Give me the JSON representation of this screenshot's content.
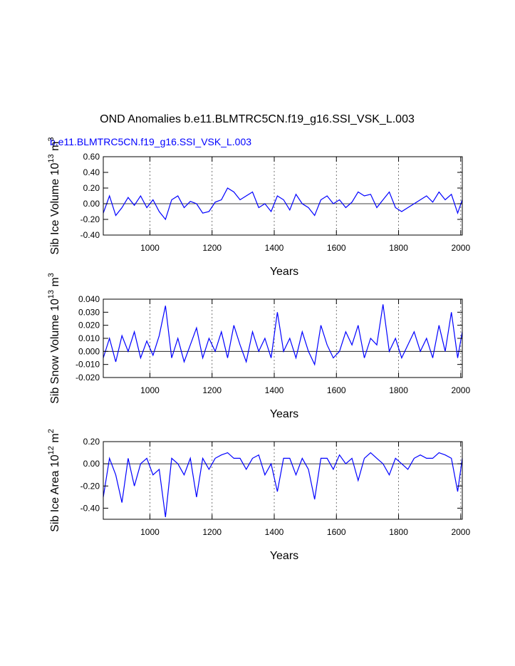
{
  "chart_data": {
    "title": "OND Anomalies b.e11.BLMTRC5CN.f19_g16.SSI_VSK_L.003",
    "subtitle": "b.e11.BLMTRC5CN.f19_g16.SSI_VSK_L.003",
    "subtitle_color": "#0000ff",
    "line_color": "#0000ff",
    "panels": [
      {
        "type": "line",
        "ylabel": "Sib Ice Volume 10",
        "ylabel_exp": "13",
        "ylabel_unit": " m",
        "ylabel_unit_exp": "3",
        "xlabel": "Years",
        "xlim": [
          850,
          2005
        ],
        "ylim": [
          -0.4,
          0.6
        ],
        "yticks": [
          -0.4,
          -0.2,
          0.0,
          0.2,
          0.4,
          0.6
        ],
        "yticklabels": [
          "-0.40",
          "-0.20",
          "0.00",
          "0.20",
          "0.40",
          "0.60"
        ],
        "xticks": [
          1000,
          1200,
          1400,
          1600,
          1800,
          2000
        ],
        "xticklabels": [
          "1000",
          "1200",
          "1400",
          "1600",
          "1800",
          "2000"
        ],
        "grid_x": [
          1000,
          1200,
          1400,
          1600,
          1800,
          2000
        ],
        "x": [
          850,
          870,
          890,
          910,
          930,
          950,
          970,
          990,
          1010,
          1030,
          1050,
          1070,
          1090,
          1110,
          1130,
          1150,
          1170,
          1190,
          1210,
          1230,
          1250,
          1270,
          1290,
          1310,
          1330,
          1350,
          1370,
          1390,
          1410,
          1430,
          1450,
          1470,
          1490,
          1510,
          1530,
          1550,
          1570,
          1590,
          1610,
          1630,
          1650,
          1670,
          1690,
          1710,
          1730,
          1750,
          1770,
          1790,
          1810,
          1830,
          1850,
          1870,
          1890,
          1910,
          1930,
          1950,
          1970,
          1990,
          2005
        ],
        "values": [
          -0.12,
          0.1,
          -0.15,
          -0.05,
          0.08,
          -0.02,
          0.1,
          -0.05,
          0.05,
          -0.1,
          -0.2,
          0.05,
          0.1,
          -0.05,
          0.03,
          0.0,
          -0.12,
          -0.1,
          0.02,
          0.05,
          0.2,
          0.15,
          0.05,
          0.1,
          0.15,
          -0.05,
          0.0,
          -0.1,
          0.1,
          0.05,
          -0.08,
          0.12,
          0.0,
          -0.05,
          -0.15,
          0.05,
          0.1,
          0.0,
          0.05,
          -0.05,
          0.02,
          0.15,
          0.1,
          0.12,
          -0.05,
          0.05,
          0.15,
          -0.05,
          -0.1,
          -0.05,
          0.0,
          0.05,
          0.1,
          0.02,
          0.15,
          0.05,
          0.12,
          -0.12,
          0.05
        ]
      },
      {
        "type": "line",
        "ylabel": "Sib Snow Volume 10",
        "ylabel_exp": "13",
        "ylabel_unit": " m",
        "ylabel_unit_exp": "3",
        "xlabel": "Years",
        "xlim": [
          850,
          2005
        ],
        "ylim": [
          -0.02,
          0.04
        ],
        "yticks": [
          -0.02,
          -0.01,
          0.0,
          0.01,
          0.02,
          0.03,
          0.04
        ],
        "yticklabels": [
          "-0.020",
          "-0.010",
          "0.000",
          "0.010",
          "0.020",
          "0.030",
          "0.040"
        ],
        "xticks": [
          1000,
          1200,
          1400,
          1600,
          1800,
          2000
        ],
        "xticklabels": [
          "1000",
          "1200",
          "1400",
          "1600",
          "1800",
          "2000"
        ],
        "grid_x": [
          1000,
          1200,
          1400,
          1600,
          1800,
          2000
        ],
        "x": [
          850,
          870,
          890,
          910,
          930,
          950,
          970,
          990,
          1010,
          1030,
          1050,
          1070,
          1090,
          1110,
          1130,
          1150,
          1170,
          1190,
          1210,
          1230,
          1250,
          1270,
          1290,
          1310,
          1330,
          1350,
          1370,
          1390,
          1410,
          1430,
          1450,
          1470,
          1490,
          1510,
          1530,
          1550,
          1570,
          1590,
          1610,
          1630,
          1650,
          1670,
          1690,
          1710,
          1730,
          1750,
          1770,
          1790,
          1810,
          1830,
          1850,
          1870,
          1890,
          1910,
          1930,
          1950,
          1970,
          1990,
          2005
        ],
        "values": [
          -0.005,
          0.01,
          -0.008,
          0.012,
          0.0,
          0.015,
          -0.005,
          0.008,
          -0.003,
          0.012,
          0.035,
          -0.005,
          0.01,
          -0.008,
          0.005,
          0.018,
          -0.005,
          0.01,
          0.0,
          0.015,
          -0.005,
          0.02,
          0.005,
          -0.008,
          0.015,
          0.0,
          0.01,
          -0.005,
          0.03,
          0.0,
          0.01,
          -0.005,
          0.015,
          0.0,
          -0.01,
          0.02,
          0.005,
          -0.005,
          0.0,
          0.015,
          0.005,
          0.02,
          -0.005,
          0.01,
          0.005,
          0.036,
          0.0,
          0.01,
          -0.005,
          0.005,
          0.015,
          0.0,
          0.01,
          -0.005,
          0.02,
          0.0,
          0.03,
          -0.005,
          0.015
        ]
      },
      {
        "type": "line",
        "ylabel": "Sib Ice Area 10",
        "ylabel_exp": "12",
        "ylabel_unit": " m",
        "ylabel_unit_exp": "2",
        "xlabel": "Years",
        "xlim": [
          850,
          2005
        ],
        "ylim": [
          -0.5,
          0.2
        ],
        "yticks": [
          -0.4,
          -0.2,
          0.0,
          0.2
        ],
        "yticklabels": [
          "-0.40",
          "-0.20",
          "0.00",
          "0.20"
        ],
        "xticks": [
          1000,
          1200,
          1400,
          1600,
          1800,
          2000
        ],
        "xticklabels": [
          "1000",
          "1200",
          "1400",
          "1600",
          "1800",
          "2000"
        ],
        "grid_x": [
          1000,
          1200,
          1400,
          1600,
          1800,
          2000
        ],
        "x": [
          850,
          870,
          890,
          910,
          930,
          950,
          970,
          990,
          1010,
          1030,
          1050,
          1070,
          1090,
          1110,
          1130,
          1150,
          1170,
          1190,
          1210,
          1230,
          1250,
          1270,
          1290,
          1310,
          1330,
          1350,
          1370,
          1390,
          1410,
          1430,
          1450,
          1470,
          1490,
          1510,
          1530,
          1550,
          1570,
          1590,
          1610,
          1630,
          1650,
          1670,
          1690,
          1710,
          1730,
          1750,
          1770,
          1790,
          1810,
          1830,
          1850,
          1870,
          1890,
          1910,
          1930,
          1950,
          1970,
          1990,
          2005
        ],
        "values": [
          -0.3,
          0.05,
          -0.1,
          -0.35,
          0.05,
          -0.2,
          0.0,
          0.05,
          -0.1,
          -0.05,
          -0.48,
          0.05,
          0.0,
          -0.1,
          0.05,
          -0.3,
          0.05,
          -0.05,
          0.05,
          0.08,
          0.1,
          0.05,
          0.05,
          -0.05,
          0.05,
          0.08,
          -0.1,
          0.0,
          -0.25,
          0.05,
          0.05,
          -0.1,
          0.05,
          -0.05,
          -0.32,
          0.05,
          0.05,
          -0.05,
          0.08,
          0.0,
          0.05,
          -0.15,
          0.05,
          0.1,
          0.05,
          0.0,
          -0.1,
          0.05,
          0.0,
          -0.05,
          0.05,
          0.08,
          0.05,
          0.05,
          0.1,
          0.08,
          0.05,
          -0.25,
          0.05
        ]
      }
    ]
  }
}
